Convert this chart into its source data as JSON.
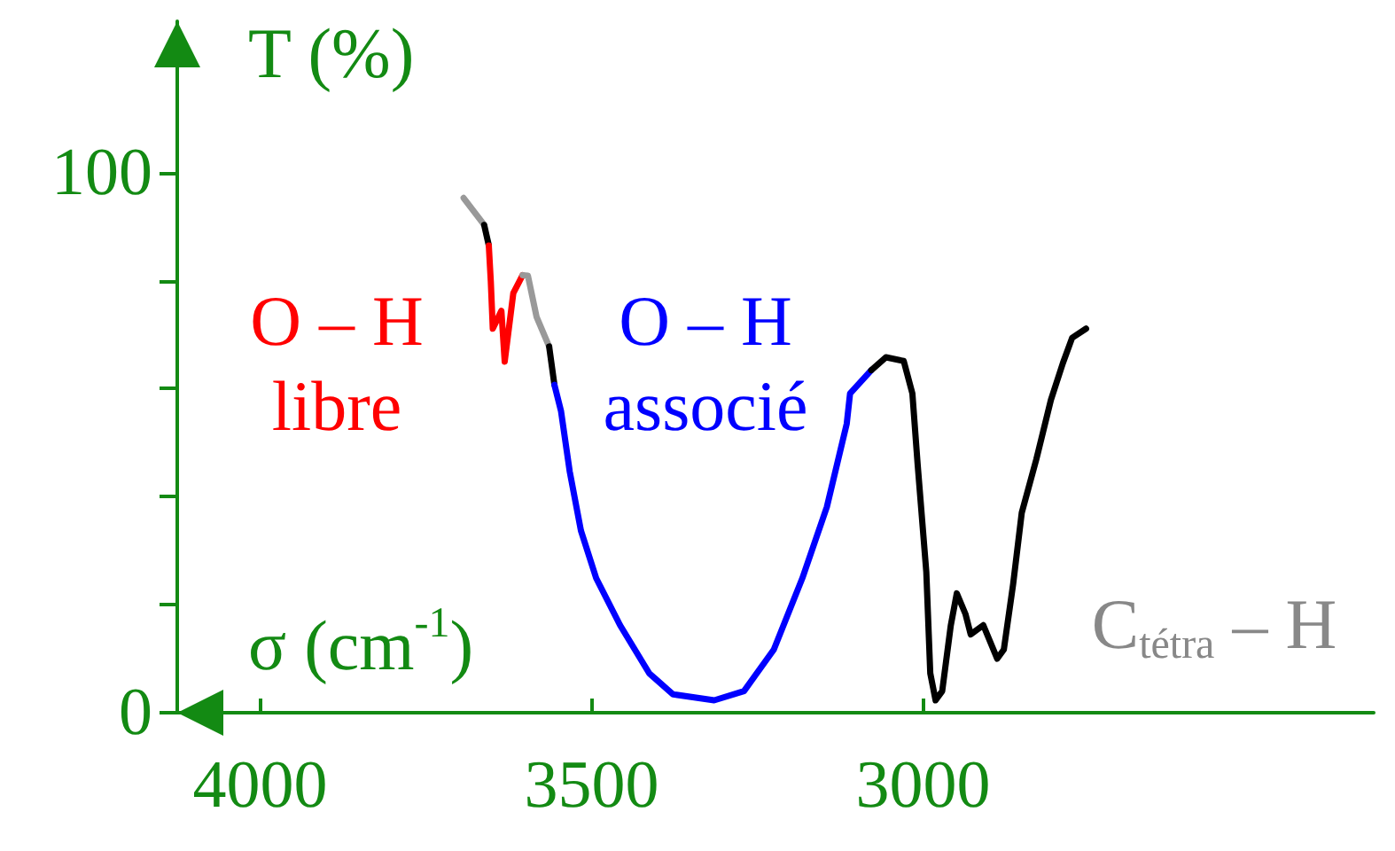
{
  "chart_data": {
    "type": "line",
    "xlabel": "σ (cm$^{-1}$)",
    "ylabel": "T (%)",
    "xlim": [
      4125,
      2320
    ],
    "xticks": [
      4000,
      3500,
      3000
    ],
    "ylim": [
      0,
      128
    ],
    "yticks": [
      0,
      {
        "value": 20,
        "label": null
      },
      {
        "value": 40,
        "label": null
      },
      {
        "value": 60,
        "label": null
      },
      {
        "value": 80,
        "label": null
      },
      100
    ],
    "marker": "none",
    "series": [
      {
        "color": "#999999",
        "x": [
          3693,
          3662
        ],
        "values": [
          95.3,
          90.3
        ]
      },
      {
        "color": "#000000",
        "x": [
          3662,
          3655
        ],
        "values": [
          90.3,
          86.5
        ]
      },
      {
        "color": "#ff0000",
        "x": [
          3655,
          3652,
          3649,
          3636,
          3631,
          3618,
          3604
        ],
        "values": [
          86.5,
          79.9,
          71.1,
          74.4,
          65.0,
          77.7,
          81.0
        ]
      },
      {
        "color": "#999999",
        "x": [
          3604,
          3596,
          3583,
          3564
        ],
        "values": [
          81.0,
          80.9,
          73.3,
          67.8
        ]
      },
      {
        "color": "#000000",
        "x": [
          3564,
          3556
        ],
        "values": [
          67.8,
          60.7
        ]
      },
      {
        "color": "#0000ff",
        "x": [
          3556,
          3546,
          3533,
          3516,
          3493,
          3457,
          3413,
          3377,
          3315,
          3270,
          3225,
          3182,
          3145,
          3115,
          3110,
          3078
        ],
        "values": [
          60.7,
          55.8,
          44.7,
          33.7,
          24.9,
          16.2,
          7.3,
          3.4,
          2.3,
          4.0,
          11.7,
          24.9,
          38.1,
          53.5,
          59.1,
          63.4
        ]
      },
      {
        "color": "#000000",
        "x": [
          3078,
          3056,
          3029,
          3016,
          3008,
          2995,
          2989,
          2981,
          2971,
          2958,
          2949,
          2936,
          2928,
          2909,
          2888,
          2878,
          2864,
          2851,
          2829,
          2807,
          2789,
          2775,
          2754
        ],
        "values": [
          63.4,
          65.8,
          65.1,
          59.1,
          45.9,
          26.1,
          7.3,
          2.3,
          4.0,
          16.2,
          22.1,
          18.3,
          14.5,
          16.2,
          10.0,
          11.7,
          23.8,
          37.0,
          46.9,
          57.9,
          64.7,
          69.4,
          71.1
        ]
      }
    ],
    "annotations": [
      "O – H\nlibre",
      "O – H\nassocié",
      "C$_{tétra}$ – H"
    ]
  }
}
